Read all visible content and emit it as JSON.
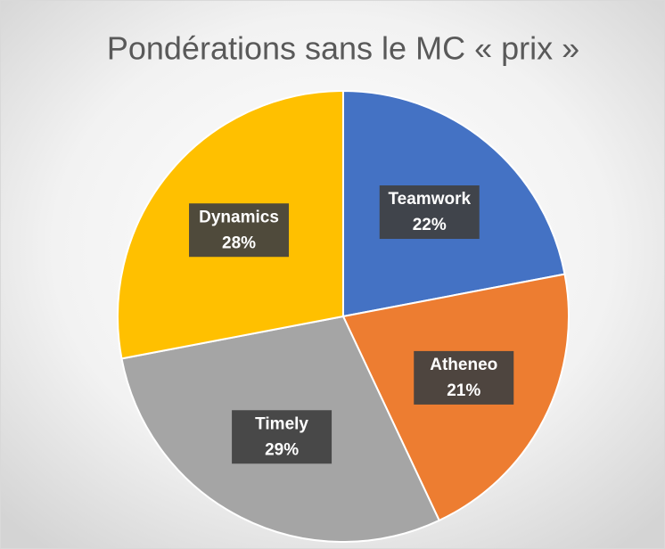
{
  "chart_data": {
    "type": "pie",
    "title": "Pondérations sans le MC « prix »",
    "categories": [
      "Teamwork",
      "Atheneo",
      "Timely",
      "Dynamics"
    ],
    "values": [
      22,
      21,
      29,
      28
    ],
    "value_labels": [
      "22%",
      "21%",
      "29%",
      "28%"
    ],
    "colors": [
      "#4472c4",
      "#ed7d31",
      "#a5a5a5",
      "#ffc000"
    ]
  }
}
